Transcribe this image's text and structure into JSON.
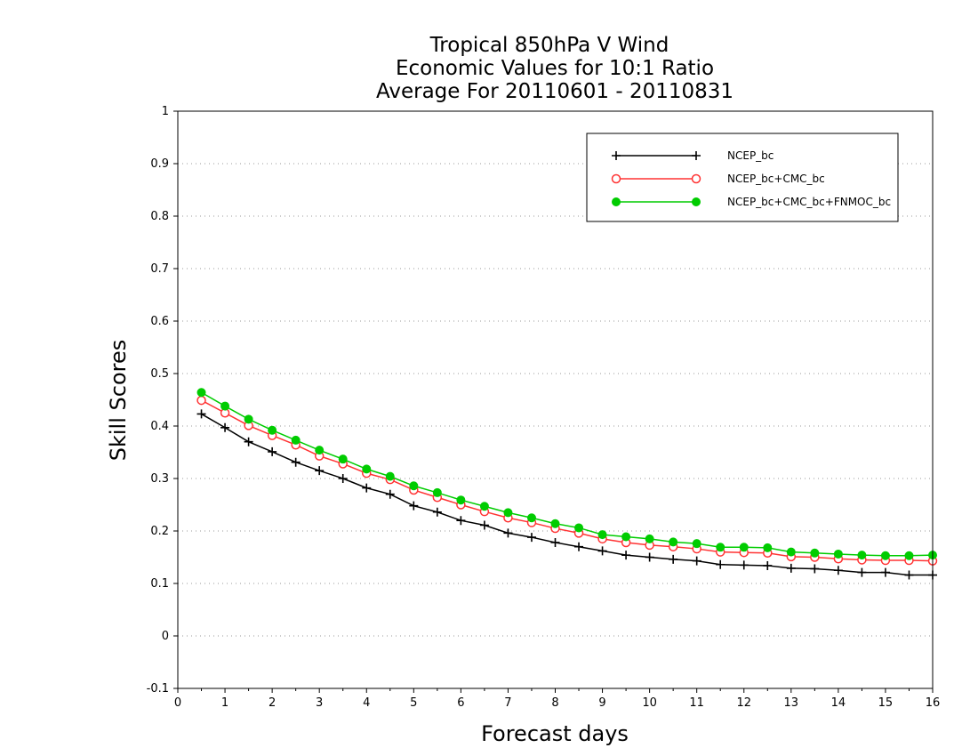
{
  "chart_data": {
    "type": "line",
    "title": [
      "Tropical 850hPa V Wind",
      "Economic Values for 10:1 Ratio",
      "Average For 20110601 - 20110831"
    ],
    "xlabel": "Forecast days",
    "ylabel": "Skill Scores",
    "xlim": [
      0,
      16
    ],
    "ylim": [
      -0.1,
      1
    ],
    "xticks": [
      "0",
      "1",
      "2",
      "3",
      "4",
      "5",
      "6",
      "7",
      "8",
      "9",
      "10",
      "11",
      "12",
      "13",
      "14",
      "15",
      "16"
    ],
    "yticks": [
      "-0.1",
      "0",
      "0.1",
      "0.2",
      "0.3",
      "0.4",
      "0.5",
      "0.6",
      "0.7",
      "0.8",
      "0.9",
      "1"
    ],
    "grid": "horizontal dotted",
    "legend_position": "top-right",
    "x": [
      0.5,
      1,
      1.5,
      2,
      2.5,
      3,
      3.5,
      4,
      4.5,
      5,
      5.5,
      6,
      6.5,
      7,
      7.5,
      8,
      8.5,
      9,
      9.5,
      10,
      10.5,
      11,
      11.5,
      12,
      12.5,
      13,
      13.5,
      14,
      14.5,
      15,
      15.5,
      16
    ],
    "series": [
      {
        "name": "NCEP_bc",
        "color": "#000000",
        "marker": "plus",
        "values": [
          0.423,
          0.397,
          0.37,
          0.351,
          0.331,
          0.315,
          0.3,
          0.282,
          0.27,
          0.248,
          0.236,
          0.22,
          0.211,
          0.196,
          0.188,
          0.178,
          0.17,
          0.162,
          0.154,
          0.15,
          0.146,
          0.143,
          0.136,
          0.135,
          0.134,
          0.129,
          0.128,
          0.125,
          0.121,
          0.121,
          0.116,
          0.116
        ]
      },
      {
        "name": "NCEP_bc+CMC_bc",
        "color": "#ff3333",
        "marker": "open-circle",
        "values": [
          0.449,
          0.425,
          0.401,
          0.382,
          0.364,
          0.343,
          0.328,
          0.31,
          0.298,
          0.278,
          0.264,
          0.25,
          0.237,
          0.225,
          0.216,
          0.205,
          0.196,
          0.185,
          0.178,
          0.173,
          0.17,
          0.166,
          0.16,
          0.159,
          0.158,
          0.151,
          0.15,
          0.147,
          0.145,
          0.144,
          0.144,
          0.143
        ]
      },
      {
        "name": "NCEP_bc+CMC_bc+FNMOC_bc",
        "color": "#00cc00",
        "marker": "filled-circle",
        "values": [
          0.464,
          0.438,
          0.413,
          0.392,
          0.373,
          0.354,
          0.337,
          0.318,
          0.304,
          0.286,
          0.273,
          0.259,
          0.247,
          0.235,
          0.225,
          0.214,
          0.206,
          0.193,
          0.189,
          0.185,
          0.179,
          0.176,
          0.169,
          0.169,
          0.168,
          0.16,
          0.158,
          0.156,
          0.154,
          0.153,
          0.153,
          0.154
        ]
      }
    ]
  }
}
